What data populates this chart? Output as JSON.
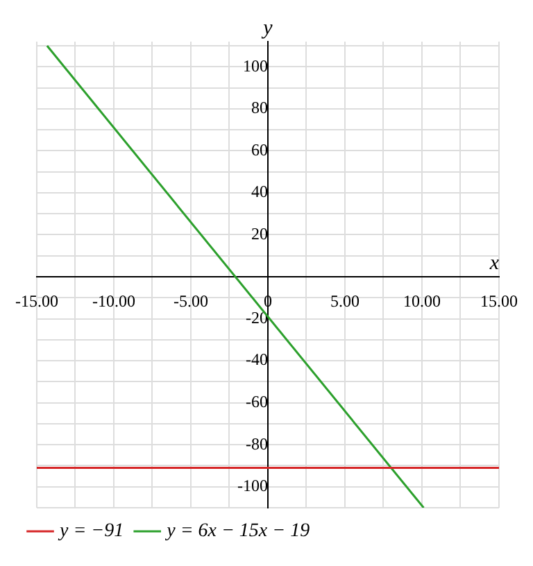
{
  "chart_data": {
    "type": "line",
    "xlabel": "x",
    "ylabel": "y",
    "xlim": [
      -15,
      15
    ],
    "ylim": [
      -110,
      112
    ],
    "xticks": [
      {
        "value": -15,
        "label": "-15.00"
      },
      {
        "value": -12.5,
        "label": null
      },
      {
        "value": -10,
        "label": "-10.00"
      },
      {
        "value": -7.5,
        "label": null
      },
      {
        "value": -5,
        "label": "-5.00"
      },
      {
        "value": -2.5,
        "label": null
      },
      {
        "value": 0,
        "label": "0"
      },
      {
        "value": 2.5,
        "label": null
      },
      {
        "value": 5,
        "label": "5.00"
      },
      {
        "value": 7.5,
        "label": null
      },
      {
        "value": 10,
        "label": "10.00"
      },
      {
        "value": 12.5,
        "label": null
      },
      {
        "value": 15,
        "label": "15.00"
      }
    ],
    "yticks": [
      {
        "value": -110,
        "label": null
      },
      -100,
      {
        "value": -90,
        "label": null
      },
      -80,
      {
        "value": -70,
        "label": null
      },
      -60,
      {
        "value": -50,
        "label": null
      },
      -40,
      {
        "value": -30,
        "label": null
      },
      -20,
      {
        "value": -10,
        "label": null
      },
      {
        "value": 0,
        "label": null
      },
      {
        "value": 10,
        "label": null
      },
      20,
      {
        "value": 30,
        "label": null
      },
      40,
      {
        "value": 50,
        "label": null
      },
      60,
      {
        "value": 70,
        "label": null
      },
      80,
      {
        "value": 90,
        "label": null
      },
      100,
      {
        "value": 110,
        "label": null
      }
    ],
    "series": [
      {
        "name": "y = −91",
        "color": "#d62728",
        "x": [
          -15,
          15
        ],
        "values": [
          -91,
          -91
        ]
      },
      {
        "name": "y = 6x − 15x − 19",
        "color": "#2ca02c",
        "x": [
          -14.33,
          10.11
        ],
        "values": [
          110,
          -110
        ]
      }
    ],
    "grid": true,
    "legend": "bottom left",
    "marker": "none",
    "line_style": "solid"
  }
}
